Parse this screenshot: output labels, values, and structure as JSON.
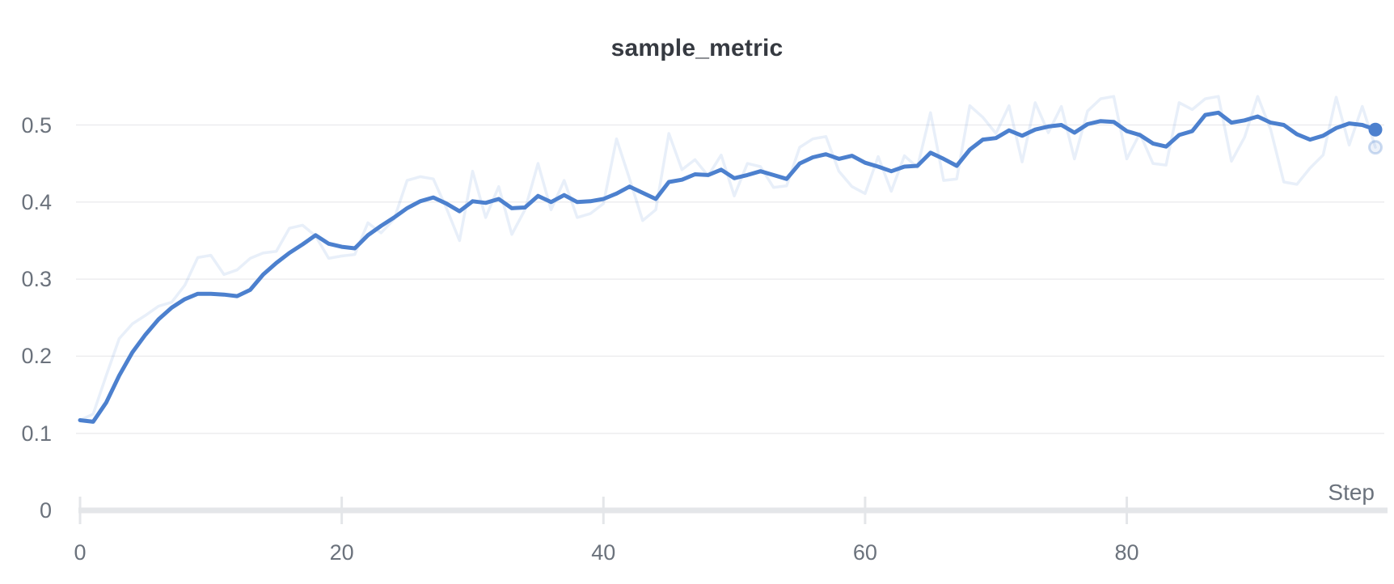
{
  "chart": {
    "title": "sample_metric",
    "x_axis_title": "Step",
    "colors": {
      "line": "#4c80ce",
      "raw_line_opacity": 0.13,
      "title_text": "#363a41",
      "tick_text": "#6b727c",
      "gridline": "#ededef",
      "axis_bar": "#e4e6e9",
      "background": "#ffffff"
    }
  },
  "chart_data": {
    "type": "line",
    "title": "sample_metric",
    "xlabel": "Step",
    "ylabel": "",
    "xlim": [
      0,
      99
    ],
    "ylim": [
      0,
      0.555
    ],
    "grid": "horizontal",
    "legend_position": "none",
    "x_start": 0,
    "x_step": 1,
    "n_points": 100,
    "x_ticks": [
      0,
      20,
      40,
      60,
      80
    ],
    "x_tick_labels": [
      "0",
      "20",
      "40",
      "60",
      "80"
    ],
    "y_ticks": [
      0,
      0.1,
      0.2,
      0.3,
      0.4,
      0.5
    ],
    "y_tick_labels": [
      "0",
      "0.1",
      "0.2",
      "0.3",
      "0.4",
      "0.5"
    ],
    "series": [
      {
        "name": "sample_metric",
        "variant": "raw",
        "style": "faded",
        "end_marker": "ring",
        "values": [
          0.117,
          0.125,
          0.175,
          0.223,
          0.242,
          0.253,
          0.265,
          0.27,
          0.292,
          0.328,
          0.331,
          0.306,
          0.312,
          0.327,
          0.334,
          0.336,
          0.366,
          0.37,
          0.356,
          0.327,
          0.33,
          0.332,
          0.373,
          0.36,
          0.378,
          0.428,
          0.433,
          0.43,
          0.392,
          0.35,
          0.44,
          0.38,
          0.42,
          0.358,
          0.39,
          0.45,
          0.39,
          0.428,
          0.38,
          0.385,
          0.398,
          0.482,
          0.43,
          0.376,
          0.39,
          0.489,
          0.442,
          0.455,
          0.434,
          0.461,
          0.408,
          0.45,
          0.446,
          0.419,
          0.421,
          0.471,
          0.482,
          0.485,
          0.44,
          0.42,
          0.411,
          0.459,
          0.414,
          0.46,
          0.445,
          0.516,
          0.428,
          0.43,
          0.525,
          0.51,
          0.489,
          0.525,
          0.452,
          0.529,
          0.49,
          0.524,
          0.456,
          0.518,
          0.534,
          0.537,
          0.456,
          0.489,
          0.45,
          0.448,
          0.529,
          0.52,
          0.534,
          0.537,
          0.453,
          0.484,
          0.537,
          0.494,
          0.426,
          0.423,
          0.444,
          0.461,
          0.536,
          0.474,
          0.524,
          0.471
        ]
      },
      {
        "name": "sample_metric",
        "variant": "smoothed",
        "style": "solid",
        "end_marker": "dot",
        "values": [
          0.117,
          0.115,
          0.14,
          0.175,
          0.205,
          0.228,
          0.248,
          0.263,
          0.274,
          0.281,
          0.281,
          0.28,
          0.278,
          0.286,
          0.306,
          0.321,
          0.334,
          0.345,
          0.357,
          0.346,
          0.342,
          0.34,
          0.357,
          0.369,
          0.38,
          0.392,
          0.401,
          0.406,
          0.398,
          0.388,
          0.401,
          0.399,
          0.404,
          0.392,
          0.393,
          0.408,
          0.4,
          0.409,
          0.4,
          0.401,
          0.404,
          0.411,
          0.42,
          0.412,
          0.404,
          0.426,
          0.429,
          0.436,
          0.435,
          0.442,
          0.431,
          0.435,
          0.44,
          0.435,
          0.43,
          0.45,
          0.458,
          0.462,
          0.456,
          0.46,
          0.451,
          0.446,
          0.44,
          0.446,
          0.447,
          0.464,
          0.456,
          0.447,
          0.468,
          0.481,
          0.483,
          0.493,
          0.486,
          0.494,
          0.498,
          0.5,
          0.49,
          0.501,
          0.505,
          0.504,
          0.492,
          0.487,
          0.476,
          0.472,
          0.487,
          0.492,
          0.513,
          0.516,
          0.503,
          0.506,
          0.511,
          0.503,
          0.5,
          0.488,
          0.481,
          0.486,
          0.496,
          0.502,
          0.5,
          0.494
        ]
      }
    ]
  }
}
